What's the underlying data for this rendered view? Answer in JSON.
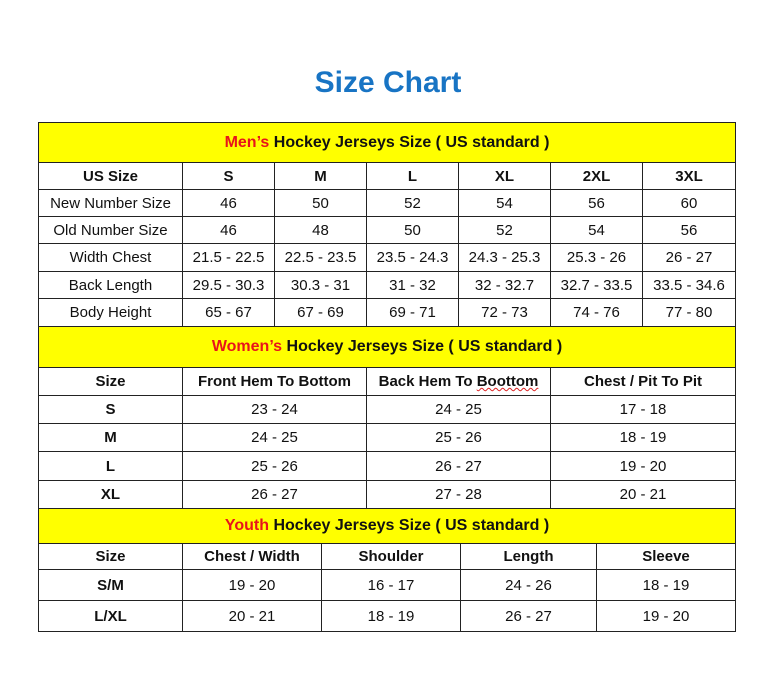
{
  "title": "Size Chart",
  "colors": {
    "title": "#1874c4",
    "header_bg": "#ffff00",
    "accent_red": "#e8141b"
  },
  "mens": {
    "heading_prefix": "Men’s",
    "heading_rest": " Hockey Jerseys Size ( US standard )",
    "columns": [
      "US Size",
      "S",
      "M",
      "L",
      "XL",
      "2XL",
      "3XL"
    ],
    "rows": [
      [
        "New Number Size",
        "46",
        "50",
        "52",
        "54",
        "56",
        "60"
      ],
      [
        "Old Number Size",
        "46",
        "48",
        "50",
        "52",
        "54",
        "56"
      ],
      [
        "Width Chest",
        "21.5 - 22.5",
        "22.5 - 23.5",
        "23.5 - 24.3",
        "24.3 - 25.3",
        "25.3 - 26",
        "26 - 27"
      ],
      [
        "Back Length",
        "29.5 - 30.3",
        "30.3 - 31",
        "31 - 32",
        "32 - 32.7",
        "32.7 - 33.5",
        "33.5 - 34.6"
      ],
      [
        "Body Height",
        "65 - 67",
        "67 - 69",
        "69 - 71",
        "72 - 73",
        "74 - 76",
        "77 - 80"
      ]
    ]
  },
  "womens": {
    "heading_prefix": "Women’s",
    "heading_rest": " Hockey Jerseys Size ( US standard )",
    "columns": [
      "Size",
      "Front Hem To Bottom",
      "Back Hem To Boottom",
      "Chest / Pit To Pit"
    ],
    "rows": [
      [
        "S",
        "23 - 24",
        "24 - 25",
        "17 - 18"
      ],
      [
        "M",
        "24 - 25",
        "25 - 26",
        "18 - 19"
      ],
      [
        "L",
        "25 - 26",
        "26 - 27",
        "19 - 20"
      ],
      [
        "XL",
        "26 - 27",
        "27 - 28",
        "20 - 21"
      ]
    ]
  },
  "youth": {
    "heading_prefix": "Youth",
    "heading_rest": " Hockey Jerseys Size ( US standard )",
    "columns": [
      "Size",
      "Chest / Width",
      "Shoulder",
      "Length",
      "Sleeve"
    ],
    "rows": [
      [
        "S/M",
        "19 - 20",
        "16 - 17",
        "24 - 26",
        "18 - 19"
      ],
      [
        "L/XL",
        "20 - 21",
        "18 - 19",
        "26 - 27",
        "19 - 20"
      ]
    ]
  }
}
